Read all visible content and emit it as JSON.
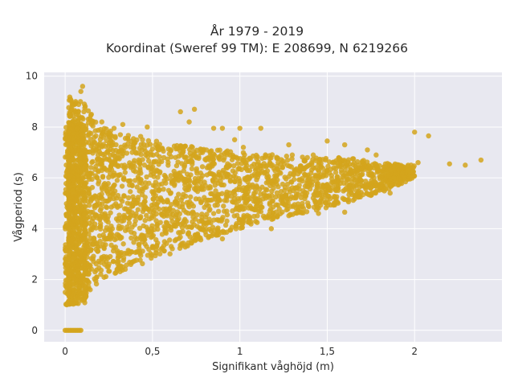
{
  "chart_data": {
    "type": "scatter",
    "title": "År 1979 - 2019",
    "subtitle": "Koordinat (Sweref 99 TM): E 208699, N 6219266",
    "xlabel": "Signifikant våghöjd (m)",
    "ylabel": "Vågperiod (s)",
    "xlim": [
      -0.12,
      2.5
    ],
    "ylim": [
      -0.45,
      10.15
    ],
    "x_ticks": [
      0,
      0.5,
      1,
      1.5,
      2
    ],
    "x_tick_labels": [
      "0",
      "0,5",
      "1",
      "1,5",
      "2"
    ],
    "y_ticks": [
      0,
      2,
      4,
      6,
      8,
      10
    ],
    "y_tick_labels": [
      "0",
      "2",
      "4",
      "6",
      "8",
      "10"
    ],
    "grid": true,
    "background": "#e8e8f0",
    "marker_color": "#d4a51c",
    "outliers": [
      {
        "x": 2.38,
        "y": 6.7
      },
      {
        "x": 2.29,
        "y": 6.5
      },
      {
        "x": 2.2,
        "y": 6.55
      },
      {
        "x": 2.08,
        "y": 7.65
      },
      {
        "x": 2.02,
        "y": 6.6
      },
      {
        "x": 2.0,
        "y": 7.8
      },
      {
        "x": 1.98,
        "y": 6.5
      },
      {
        "x": 1.92,
        "y": 6.45
      },
      {
        "x": 1.85,
        "y": 6.1
      },
      {
        "x": 1.78,
        "y": 6.9
      },
      {
        "x": 1.73,
        "y": 7.1
      },
      {
        "x": 1.6,
        "y": 7.3
      },
      {
        "x": 1.5,
        "y": 7.45
      },
      {
        "x": 1.12,
        "y": 7.95
      },
      {
        "x": 1.0,
        "y": 7.95
      },
      {
        "x": 0.9,
        "y": 7.95
      },
      {
        "x": 0.85,
        "y": 7.95
      },
      {
        "x": 0.71,
        "y": 8.2
      },
      {
        "x": 0.74,
        "y": 8.7
      },
      {
        "x": 0.66,
        "y": 8.6
      },
      {
        "x": 0.47,
        "y": 8.0
      },
      {
        "x": 0.33,
        "y": 8.1
      },
      {
        "x": 0.28,
        "y": 7.95
      },
      {
        "x": 0.21,
        "y": 8.2
      },
      {
        "x": 0.15,
        "y": 8.5
      },
      {
        "x": 0.1,
        "y": 9.6
      },
      {
        "x": 0.09,
        "y": 9.4
      },
      {
        "x": 0.06,
        "y": 9.0
      },
      {
        "x": 0.03,
        "y": 8.5
      },
      {
        "x": 0.11,
        "y": 8.9
      },
      {
        "x": 1.65,
        "y": 6.75
      },
      {
        "x": 1.42,
        "y": 6.9
      },
      {
        "x": 1.3,
        "y": 6.9
      },
      {
        "x": 1.28,
        "y": 7.3
      },
      {
        "x": 1.02,
        "y": 7.2
      },
      {
        "x": 0.97,
        "y": 7.5
      },
      {
        "x": 1.86,
        "y": 5.4
      },
      {
        "x": 1.6,
        "y": 4.65
      },
      {
        "x": 1.45,
        "y": 4.6
      },
      {
        "x": 1.55,
        "y": 5.5
      },
      {
        "x": 1.18,
        "y": 4.0
      },
      {
        "x": 0.9,
        "y": 3.6
      }
    ],
    "envelope": {
      "lower": [
        [
          0.02,
          1.0
        ],
        [
          0.1,
          1.1
        ],
        [
          0.2,
          2.0
        ],
        [
          0.4,
          2.5
        ],
        [
          0.6,
          3.0
        ],
        [
          0.8,
          3.6
        ],
        [
          1.0,
          4.0
        ],
        [
          1.2,
          4.4
        ],
        [
          1.4,
          4.6
        ],
        [
          1.6,
          5.0
        ],
        [
          1.8,
          5.4
        ],
        [
          2.0,
          6.0
        ]
      ],
      "upper": [
        [
          0.02,
          9.2
        ],
        [
          0.1,
          9.0
        ],
        [
          0.2,
          8.0
        ],
        [
          0.4,
          7.7
        ],
        [
          0.6,
          7.3
        ],
        [
          0.8,
          7.2
        ],
        [
          1.0,
          7.0
        ],
        [
          1.2,
          6.9
        ],
        [
          1.4,
          6.8
        ],
        [
          1.6,
          6.8
        ],
        [
          1.8,
          6.6
        ],
        [
          2.0,
          6.5
        ]
      ]
    },
    "zero_row": {
      "x_from": 0.0,
      "x_to": 0.09,
      "y": 0
    }
  }
}
